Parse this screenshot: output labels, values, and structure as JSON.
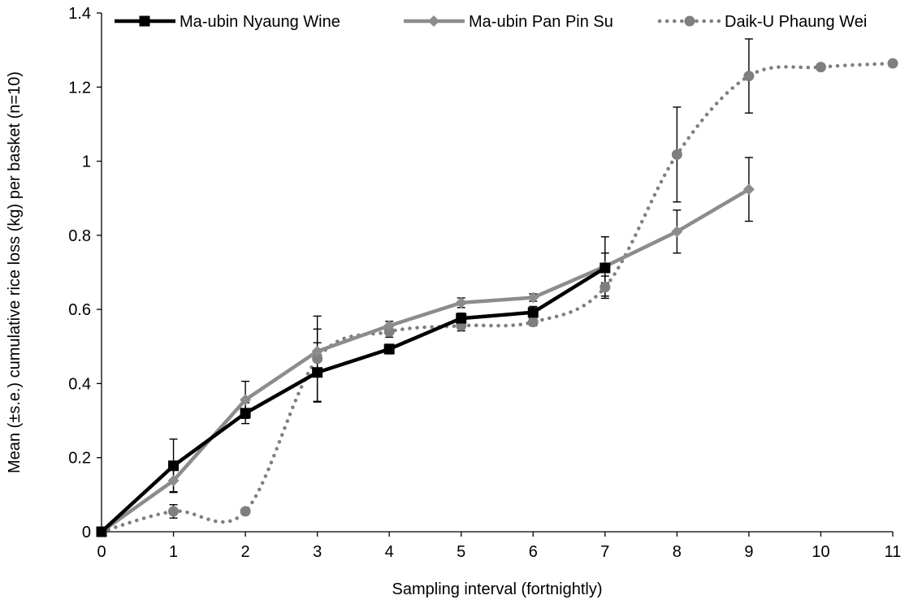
{
  "chart_data": {
    "type": "line",
    "title": "",
    "xlabel": "Sampling interval (fortnightly)",
    "ylabel": "Mean (±s.e.) cumulative rice loss (kg) per basket (n=10)",
    "xlim": [
      0,
      11
    ],
    "ylim": [
      0,
      1.4
    ],
    "x_ticks": [
      "0",
      "1",
      "2",
      "3",
      "4",
      "5",
      "6",
      "7",
      "8",
      "9",
      "10",
      "11"
    ],
    "y_ticks": [
      "0",
      "0.2",
      "0.4",
      "0.6",
      "0.8",
      "1",
      "1.2",
      "1.4"
    ],
    "grid": false,
    "legend_position": "top",
    "series": [
      {
        "name": "Ma-ubin Nyaung Wine",
        "color": "#000000",
        "line_style": "solid",
        "marker": "square",
        "x": [
          0,
          1,
          2,
          3,
          4,
          5,
          6,
          7
        ],
        "values": [
          0,
          0.178,
          0.32,
          0.43,
          0.493,
          0.576,
          0.592,
          0.712
        ],
        "errors": [
          0,
          0.072,
          0.028,
          0.08,
          0.013,
          0.014,
          0.016,
          0.04
        ]
      },
      {
        "name": "Ma-ubin Pan Pin Su",
        "color": "#8c8c8c",
        "line_style": "solid",
        "marker": "diamond",
        "x": [
          0,
          1,
          2,
          3,
          4,
          5,
          6,
          7,
          8,
          9
        ],
        "values": [
          0,
          0.138,
          0.356,
          0.487,
          0.556,
          0.618,
          0.632,
          0.716,
          0.81,
          0.924
        ],
        "errors": [
          0,
          0.03,
          0.05,
          0.06,
          0.012,
          0.013,
          0.01,
          0.08,
          0.058,
          0.086
        ]
      },
      {
        "name": "Daik-U Phaung Wei",
        "color": "#7f7f7f",
        "line_style": "dotted",
        "marker": "circle",
        "x": [
          0,
          1,
          2,
          3,
          4,
          5,
          6,
          7,
          8,
          9,
          10,
          11
        ],
        "values": [
          0,
          0.055,
          0.055,
          0.467,
          0.54,
          0.556,
          0.566,
          0.66,
          1.018,
          1.23,
          1.254,
          1.264
        ],
        "errors": [
          0,
          0.018,
          0,
          0.115,
          0.015,
          0.014,
          0.01,
          0.03,
          0.128,
          0.1,
          0.008,
          0.006
        ]
      }
    ]
  }
}
